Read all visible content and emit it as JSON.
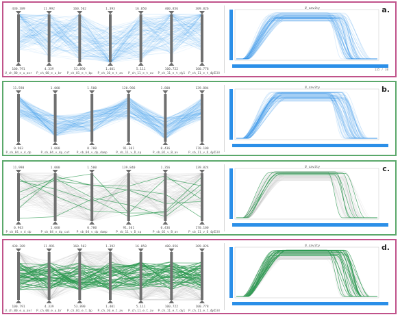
{
  "colors": {
    "blue": "#2b8fe8",
    "green": "#2e9a52",
    "gray": "#b8b8b8",
    "axis": "#6f6f6f",
    "magenta": "#c0528a",
    "border_green": "#5aa86a"
  },
  "panels": [
    {
      "label": "a.",
      "border": "magenta",
      "mode": "blue",
      "plot_title": "U_cavity",
      "footer": "1 538",
      "footer_small": "135 / 38",
      "axes": [
        {
          "top": "430.389",
          "bottom": "100.791",
          "name": "U_ch_80_e_u_avr"
        },
        {
          "top": "11.992",
          "bottom": "4.339",
          "name": "P_ch_00_e_u_br"
        },
        {
          "top": "160.502",
          "bottom": "53.890",
          "name": "P_ch_01_e_t_bp"
        },
        {
          "top": "1.393",
          "bottom": "1.401",
          "name": "P_ch_10_e_t_av"
        },
        {
          "top": "16.050",
          "bottom": "5.111",
          "name": "P_ch_11_e_t_av"
        },
        {
          "top": "400.856",
          "bottom": "100.722",
          "name": "P_ch_11_e_t_dy1"
        },
        {
          "top": "309.826",
          "bottom": "100.778",
          "name": "P_ch_11_e_t_dy1"
        }
      ]
    },
    {
      "label": "b.",
      "border": "green",
      "mode": "blue",
      "plot_title": "U_cavity",
      "footer": "1 538",
      "footer_small": "",
      "axes": [
        {
          "top": "11.598",
          "bottom": "0.903",
          "name": "P_sb_04_v_d_dp"
        },
        {
          "top": "1.000",
          "bottom": "1.000",
          "name": "P_sb_04_v_dp_cut"
        },
        {
          "top": "1.500",
          "bottom": "0.780",
          "name": "P_sb_04_v_dp_damp"
        },
        {
          "top": "120.986",
          "bottom": "91.301",
          "name": "P_sb_11_v_D_sp"
        },
        {
          "top": "1.800",
          "bottom": "0.436",
          "name": "P_sb_02_v_B_av"
        },
        {
          "top": "139.884",
          "bottom": "170.100",
          "name": "P_sb_11_v_D_sy1"
        }
      ]
    },
    {
      "label": "c.",
      "border": "green",
      "mode": "gray-green",
      "plot_title": "U_cavity",
      "footer": "1 538",
      "footer_small": "",
      "axes": [
        {
          "top": "11.998",
          "bottom": "0.903",
          "name": "P_sb_01_v_d_dp"
        },
        {
          "top": "1.000",
          "bottom": "1.000",
          "name": "P_sb_04_v_dp_cut"
        },
        {
          "top": "1.500",
          "bottom": "0.780",
          "name": "P_sb_04_v_dp_damp"
        },
        {
          "top": "139.840",
          "bottom": "91.301",
          "name": "P_sb_11_v_D_sp"
        },
        {
          "top": "1.356",
          "bottom": "0.436",
          "name": "P_sb_02_v_B_av"
        },
        {
          "top": "139.824",
          "bottom": "170.100",
          "name": "P_sb_11_v_D_sy1"
        }
      ]
    },
    {
      "label": "d.",
      "border": "magenta",
      "mode": "gray-green",
      "plot_title": "U_cavity",
      "footer": "1 538",
      "footer_small": "",
      "axes": [
        {
          "top": "430.389",
          "bottom": "100.791",
          "name": "U_ch_80_e_u_avr"
        },
        {
          "top": "11.991",
          "bottom": "4.339",
          "name": "P_ch_00_e_u_br"
        },
        {
          "top": "160.502",
          "bottom": "53.890",
          "name": "P_ch_01_e_t_bp"
        },
        {
          "top": "1.392",
          "bottom": "1.401",
          "name": "P_ch_10_e_t_av"
        },
        {
          "top": "16.050",
          "bottom": "5.111",
          "name": "P_ch_11_e_t_av"
        },
        {
          "top": "400.856",
          "bottom": "100.722",
          "name": "P_ch_11_e_t_dy1"
        },
        {
          "top": "309.826",
          "bottom": "100.778",
          "name": "P_ch_11_e_t_dy1"
        }
      ]
    }
  ]
}
